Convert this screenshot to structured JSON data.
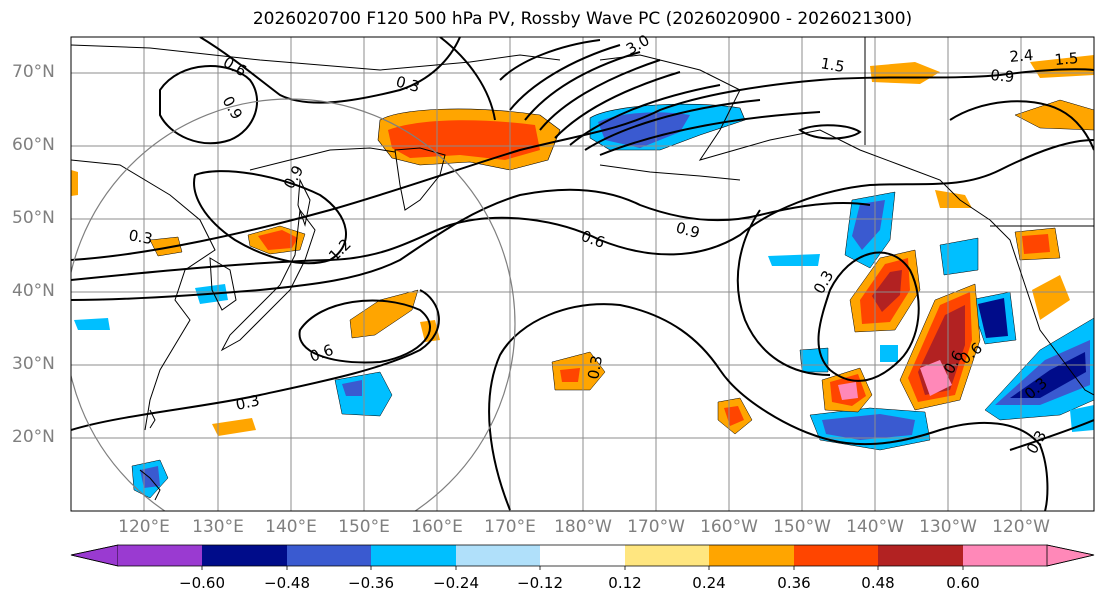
{
  "title": "2026020700 F120 500 hPa PV, Rossby Wave PC (2026020900 - 2026021300)",
  "lat_labels": [
    "70°N",
    "60°N",
    "50°N",
    "40°N",
    "30°N",
    "20°N"
  ],
  "lon_labels": [
    "120°E",
    "130°E",
    "140°E",
    "150°E",
    "160°E",
    "170°E",
    "180°W",
    "170°W",
    "160°W",
    "150°W",
    "140°W",
    "130°W",
    "120°W"
  ],
  "colorbar": {
    "ticks": [
      "−0.60",
      "−0.48",
      "−0.36",
      "−0.24",
      "−0.12",
      "0.12",
      "0.24",
      "0.36",
      "0.48",
      "0.60"
    ],
    "colors": [
      "#9a3ad1",
      "#000c8a",
      "#3a5ad0",
      "#00bfff",
      "#b0e0fa",
      "#ffffff",
      "#ffe680",
      "#ffa500",
      "#ff4500",
      "#b22222",
      "#ff88b8"
    ]
  },
  "contour_labels": [
    "0.3",
    "0.6",
    "0.9",
    "1.2",
    "1.5",
    "2.4",
    "3.0",
    "0.3",
    "0.6",
    "0.9",
    "0.3",
    "0.6",
    "0.9",
    "0.3",
    "0.3",
    "0.6",
    "0.3",
    "0.6",
    "0.3",
    "0.9",
    "1.5"
  ],
  "colors": {
    "graticule": "#8c8c8c",
    "coast": "#000000",
    "contour": "#000000"
  }
}
